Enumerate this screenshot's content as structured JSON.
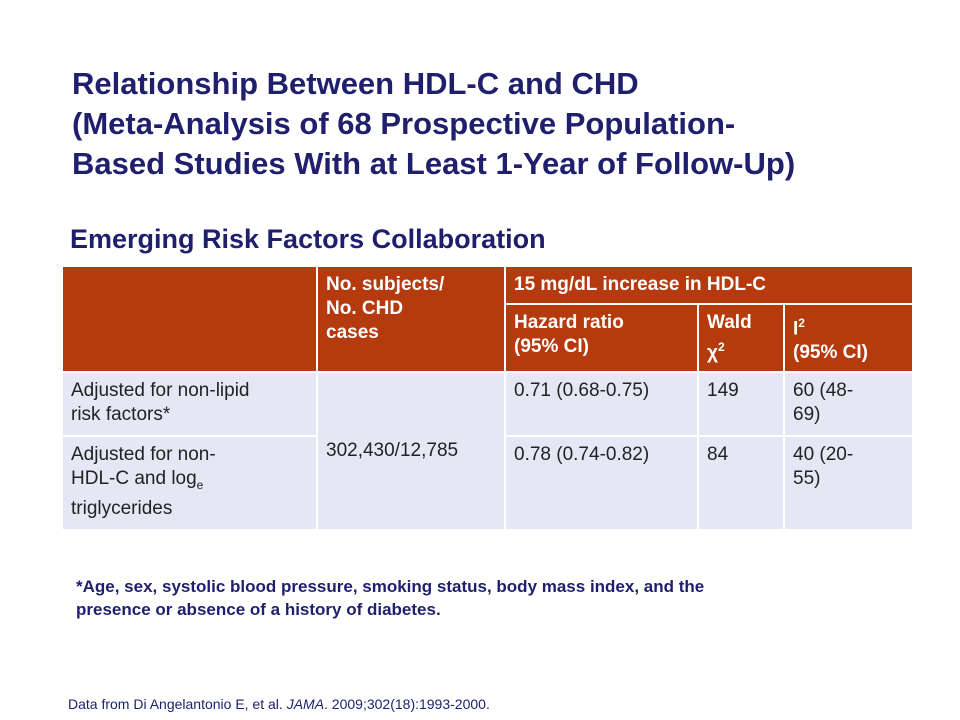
{
  "slide": {
    "title_lines": [
      "Relationship Between HDL-C and CHD",
      "(Meta-Analysis of 68 Prospective Population-",
      "Based Studies With at Least 1-Year of Follow-Up)"
    ],
    "subtitle": "Emerging Risk Factors Collaboration"
  },
  "table": {
    "header": {
      "subjects_line1": "No. subjects/",
      "subjects_line2": "No. CHD",
      "subjects_line3": "cases",
      "group": "15 mg/dL increase in HDL-C",
      "hr_line1": "Hazard ratio",
      "hr_line2": "(95% CI)",
      "wald_line1": "Wald",
      "wald_chi": "χ",
      "wald_sup": "2",
      "i2_base": "I",
      "i2_sup": "2",
      "i2_line2": "(95% CI)"
    },
    "rows": [
      {
        "label_line1": "Adjusted for non-lipid",
        "label_line2": "risk factors*",
        "hr": "0.71 (0.68-0.75)",
        "wald": "149",
        "i2_line1": "60 (48-",
        "i2_line2": "69)"
      },
      {
        "label_line1": "Adjusted for non-",
        "label_line2_text": "HDL-C and log",
        "label_line2_sub": "e",
        "label_line3": "triglycerides",
        "hr": "0.78 (0.74-0.82)",
        "wald": "84",
        "i2_line1": "40 (20-",
        "i2_line2": "55)"
      }
    ],
    "subjects_value": "302,430/12,785"
  },
  "footnote": {
    "line1": "*Age, sex, systolic blood pressure, smoking status, body mass index, and the",
    "line2": "presence or absence of a history of diabetes."
  },
  "source": {
    "prefix": "Data from Di Angelantonio E, et al. ",
    "journal": "JAMA",
    "suffix": ". 2009;302(18):1993-2000."
  },
  "colors": {
    "title": "#1f1f6e",
    "header_fill": "#b53a0d",
    "body_fill": "#e6e7f5"
  }
}
